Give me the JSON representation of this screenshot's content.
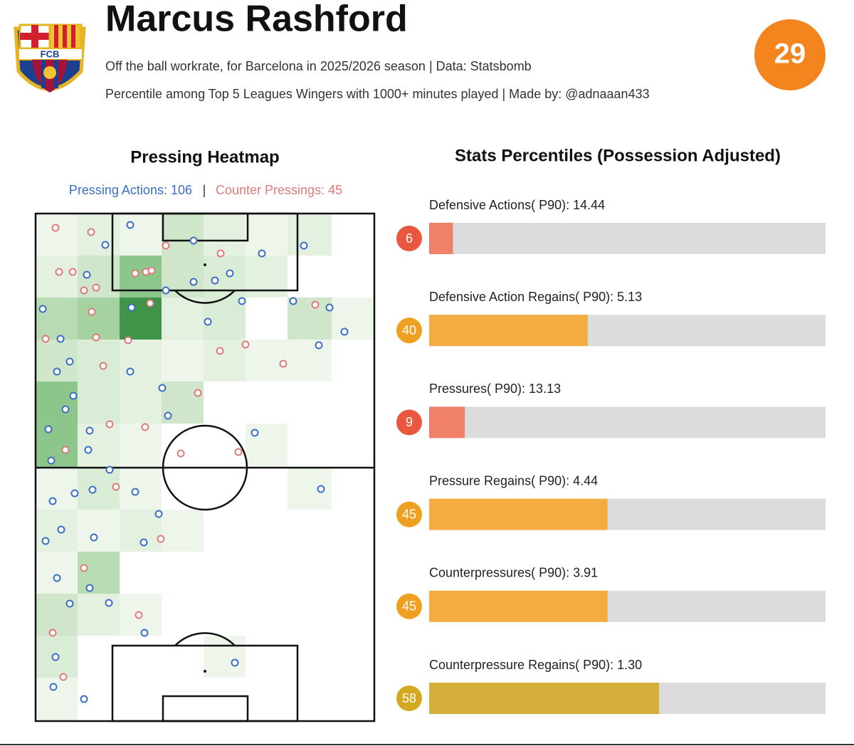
{
  "header": {
    "title": "Marcus Rashford",
    "subtitle": "Off the ball workrate, for Barcelona in 2025/2026 season | Data: Statsbomb",
    "note": "Percentile among Top 5 Leagues Wingers with 1000+ minutes played | Made by: @adnaaan433",
    "crest_text": "FCB",
    "overall": 29
  },
  "heatmap": {
    "title": "Pressing Heatmap",
    "pressing_label": "Pressing Actions: 106",
    "separator": "|",
    "counter_label": "Counter Pressings: 45"
  },
  "chart_data": {
    "type": "bar",
    "title": "Stats Percentiles (Possession Adjusted)",
    "categories": [
      "Defensive Actions( P90): 14.44",
      "Defensive Action Regains( P90): 5.13",
      "Pressures( P90): 13.13",
      "Pressure Regains( P90): 4.44",
      "Counterpressures( P90): 3.91",
      "Counterpressure Regains( P90): 1.30"
    ],
    "values": [
      6,
      40,
      9,
      45,
      45,
      58
    ],
    "colors": [
      "#f08068",
      "#f4ab40",
      "#f08068",
      "#f4ab40",
      "#f4ab40",
      "#d4b03a"
    ],
    "badge_colors": [
      "#e9573f",
      "#f0a020",
      "#e9573f",
      "#f0a020",
      "#f0a020",
      "#d4a820"
    ],
    "track_color": "#dcdcdc",
    "xlim": [
      0,
      100
    ]
  }
}
